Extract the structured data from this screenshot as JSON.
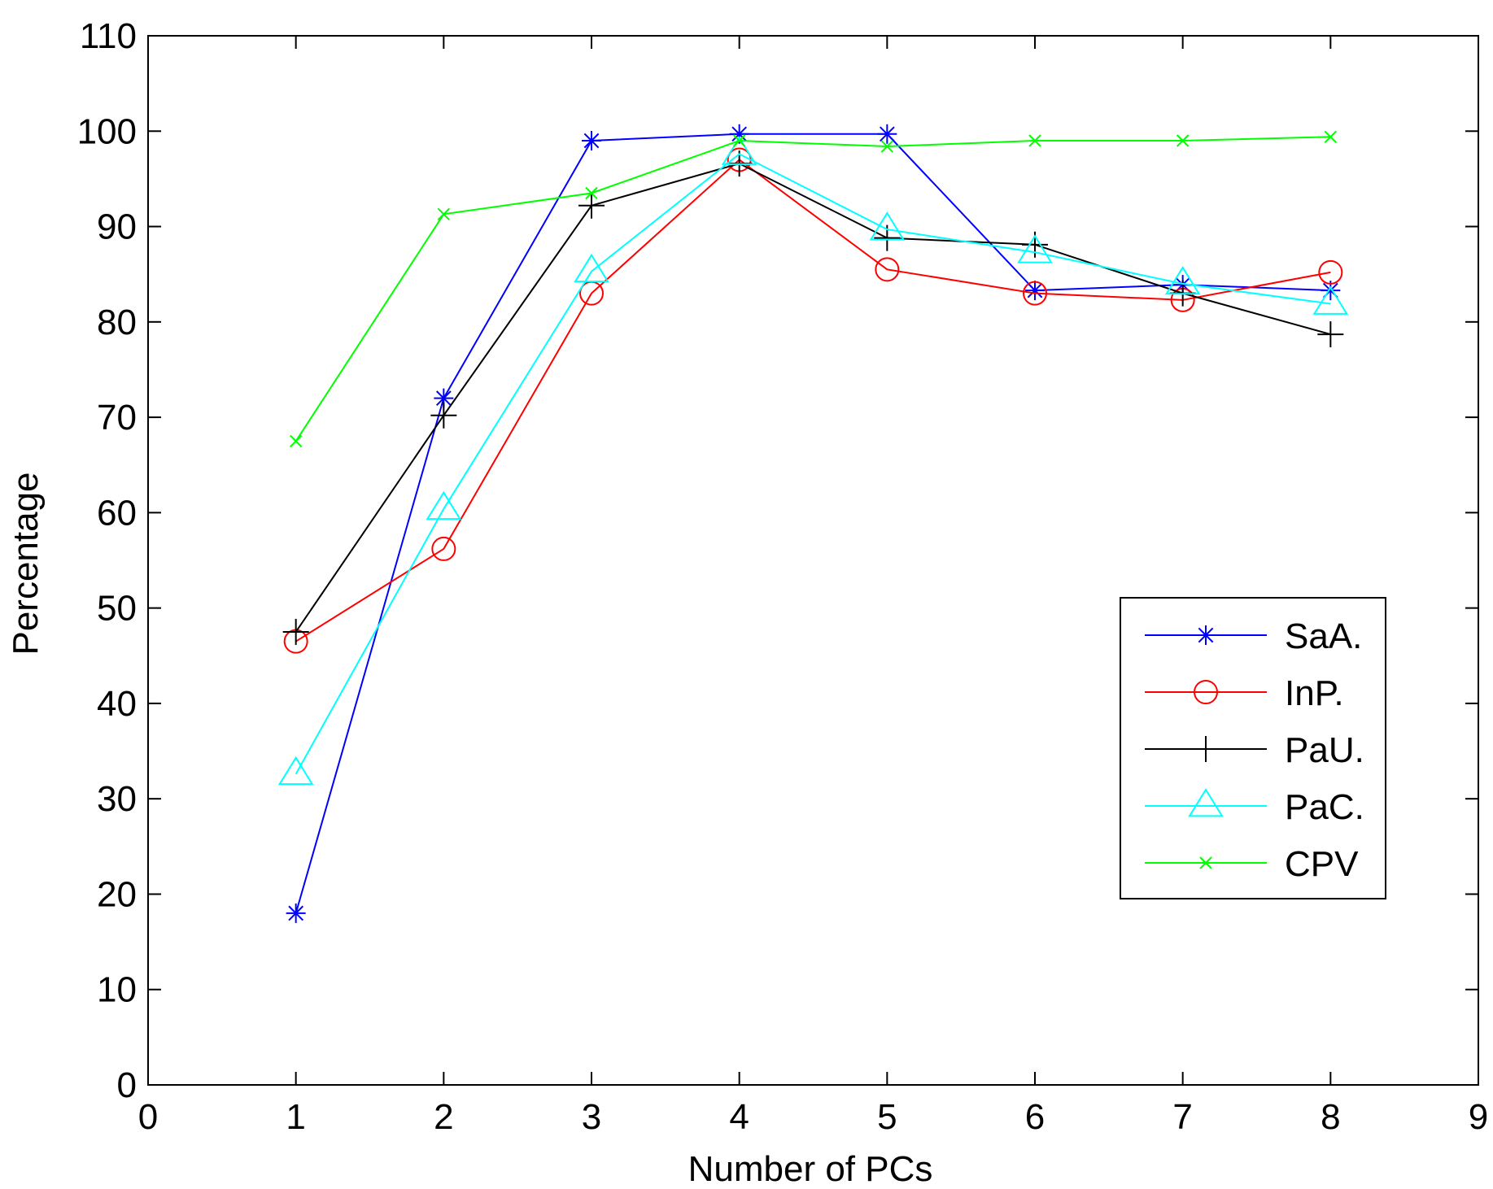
{
  "chart_data": {
    "type": "line",
    "title": "",
    "xlabel": "Number of PCs",
    "ylabel": "Percentage",
    "xlim": [
      0,
      9
    ],
    "ylim": [
      0,
      110
    ],
    "xticks": [
      0,
      1,
      2,
      3,
      4,
      5,
      6,
      7,
      8,
      9
    ],
    "yticks": [
      0,
      10,
      20,
      30,
      40,
      50,
      60,
      70,
      80,
      90,
      100,
      110
    ],
    "grid": false,
    "legend_position": "right",
    "x": [
      1,
      2,
      3,
      4,
      5,
      6,
      7,
      8
    ],
    "series": [
      {
        "name": "SaA.",
        "color": "#0000ff",
        "marker": "asterisk",
        "values": [
          18,
          72,
          99,
          99.7,
          99.7,
          83.3,
          83.9,
          83.3
        ]
      },
      {
        "name": "InP.",
        "color": "#ff0000",
        "marker": "circle",
        "values": [
          46.5,
          56.2,
          83.0,
          97.0,
          85.5,
          83.0,
          82.3,
          85.2
        ]
      },
      {
        "name": "PaU.",
        "color": "#000000",
        "marker": "plus",
        "values": [
          47.5,
          70.2,
          92.2,
          96.6,
          88.8,
          88.1,
          83.0,
          78.7
        ]
      },
      {
        "name": "PaC.",
        "color": "#00ffff",
        "marker": "triangle",
        "values": [
          32.6,
          60.4,
          85.3,
          97.6,
          89.7,
          87.3,
          84.0,
          81.9
        ]
      },
      {
        "name": "CPV",
        "color": "#00ff00",
        "marker": "x",
        "values": [
          67.5,
          91.3,
          93.5,
          99.0,
          98.4,
          99.0,
          99.0,
          99.4
        ]
      }
    ]
  }
}
